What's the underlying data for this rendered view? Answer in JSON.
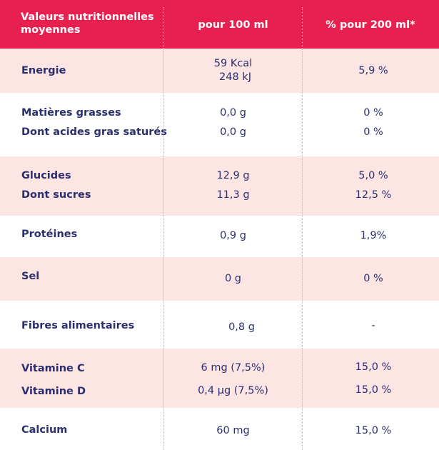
{
  "header": {
    "nutrient_label": "Valeurs nutritionnelles moyennes",
    "per100_label": "pour 100 ml",
    "per200_label": "% pour 200 ml*"
  },
  "rows": [
    {
      "label": "Energie",
      "value_line1": "59 Kcal",
      "value_line2": "248 kJ",
      "pct": "5,9 %"
    },
    {
      "label": "Matières grasses",
      "value": "0,0 g",
      "pct": "0 %"
    },
    {
      "label": "Dont acides gras saturés",
      "value": "0,0 g",
      "pct": "0 %"
    },
    {
      "label": "Glucides",
      "value": "12,9 g",
      "pct": "5,0 %"
    },
    {
      "label": "Dont sucres",
      "value": "11,3 g",
      "pct": "12,5 %"
    },
    {
      "label": "Protéines",
      "value": "0,9 g",
      "pct": "1,9%"
    },
    {
      "label": "Sel",
      "value": "0 g",
      "pct": "0 %"
    },
    {
      "label": "Fibres alimentaires",
      "value": "0,8 g",
      "pct": "-"
    },
    {
      "label": "Vitamine C",
      "value": "6 mg (7,5%)",
      "pct": "15,0 %"
    },
    {
      "label": "Vitamine D",
      "value": "0,4 µg (7,5%)",
      "pct": "15,0 %"
    },
    {
      "label": "Calcium",
      "value": "60 mg",
      "pct": "15,0 %"
    }
  ],
  "colors": {
    "header_bg": "#e8204f",
    "pink_row": "#fde5e3",
    "text": "#2a2f6d"
  }
}
